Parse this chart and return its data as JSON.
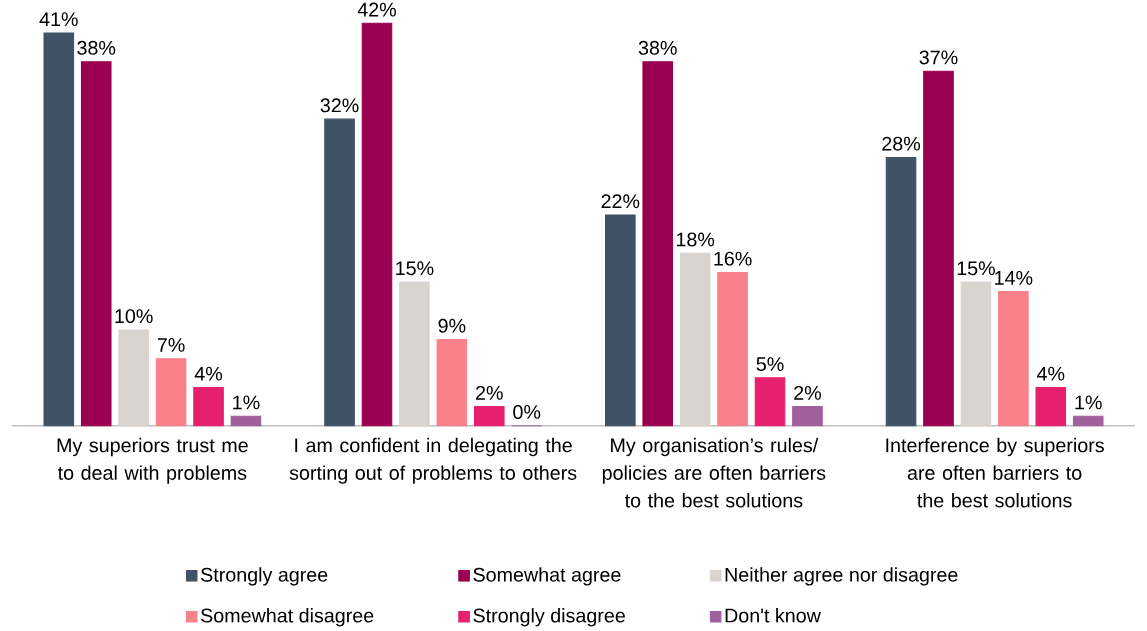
{
  "chart_data": {
    "type": "bar",
    "categories": [
      "My superiors trust me to deal with problems",
      "I am confident in delegating the sorting out of problems to others",
      "My organisation’s rules/ policies are often barriers to the best solutions",
      "Interference by superiors are often barriers to the best solutions"
    ],
    "series": [
      {
        "name": "Strongly agree",
        "color": "#3f5266",
        "values": [
          41,
          32,
          22,
          28
        ],
        "value_labels": [
          "41%",
          "32%",
          "22%",
          "28%"
        ]
      },
      {
        "name": "Somewhat agree",
        "color": "#9b0050",
        "values": [
          38,
          42,
          38,
          37
        ],
        "value_labels": [
          "38%",
          "42%",
          "38%",
          "37%"
        ]
      },
      {
        "name": "Neither agree nor disagree",
        "color": "#d9d4ce",
        "values": [
          10,
          15,
          18,
          15
        ],
        "value_labels": [
          "10%",
          "15%",
          "18%",
          "15%"
        ]
      },
      {
        "name": "Somewhat disagree",
        "color": "#f98189",
        "values": [
          7,
          9,
          16,
          14
        ],
        "value_labels": [
          "7%",
          "9%",
          "16%",
          "14%"
        ]
      },
      {
        "name": "Strongly disagree",
        "color": "#e6206e",
        "values": [
          4,
          2,
          5,
          4
        ],
        "value_labels": [
          "4%",
          "2%",
          "5%",
          "4%"
        ]
      },
      {
        "name": "Don't know",
        "color": "#a0609c",
        "values": [
          1,
          0,
          2,
          1
        ],
        "value_labels": [
          "1%",
          "0%",
          "2%",
          "1%"
        ]
      }
    ],
    "legend": "bottom",
    "relative": false
  }
}
